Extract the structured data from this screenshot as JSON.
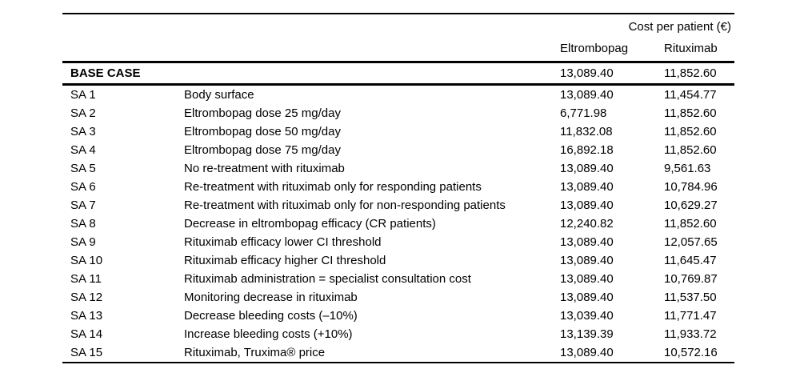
{
  "table": {
    "spanner": "Cost per patient (€)",
    "columns": {
      "eltrombopag": "Eltrombopag",
      "rituximab": "Rituximab"
    },
    "base_case": {
      "id": "BASE CASE",
      "label": "",
      "eltrombopag": "13,089.40",
      "rituximab": "11,852.60"
    },
    "rows": [
      {
        "id": "SA 1",
        "label": "Body surface",
        "eltrombopag": "13,089.40",
        "rituximab": "11,454.77"
      },
      {
        "id": "SA 2",
        "label": "Eltrombopag dose 25 mg/day",
        "eltrombopag": "6,771.98",
        "rituximab": "11,852.60"
      },
      {
        "id": "SA 3",
        "label": "Eltrombopag dose 50 mg/day",
        "eltrombopag": "11,832.08",
        "rituximab": "11,852.60"
      },
      {
        "id": "SA 4",
        "label": "Eltrombopag dose 75 mg/day",
        "eltrombopag": "16,892.18",
        "rituximab": "11,852.60"
      },
      {
        "id": "SA 5",
        "label": "No re-treatment with rituximab",
        "eltrombopag": "13,089.40",
        "rituximab": "9,561.63"
      },
      {
        "id": "SA 6",
        "label": "Re-treatment with rituximab only for responding patients",
        "eltrombopag": "13,089.40",
        "rituximab": "10,784.96"
      },
      {
        "id": "SA 7",
        "label": "Re-treatment with rituximab only for non-responding patients",
        "eltrombopag": "13,089.40",
        "rituximab": "10,629.27"
      },
      {
        "id": "SA 8",
        "label": "Decrease in eltrombopag efficacy (CR patients)",
        "eltrombopag": "12,240.82",
        "rituximab": "11,852.60"
      },
      {
        "id": "SA 9",
        "label": "Rituximab efficacy lower CI threshold",
        "eltrombopag": "13,089.40",
        "rituximab": "12,057.65"
      },
      {
        "id": "SA 10",
        "label": "Rituximab efficacy higher CI threshold",
        "eltrombopag": "13,089.40",
        "rituximab": "11,645.47"
      },
      {
        "id": "SA 11",
        "label": "Rituximab administration = specialist consultation cost",
        "eltrombopag": "13,089.40",
        "rituximab": "10,769.87"
      },
      {
        "id": "SA 12",
        "label": "Monitoring decrease in rituximab",
        "eltrombopag": "13,089.40",
        "rituximab": "11,537.50"
      },
      {
        "id": "SA 13",
        "label": "Decrease bleeding costs (–10%)",
        "eltrombopag": "13,039.40",
        "rituximab": "11,771.47"
      },
      {
        "id": "SA 14",
        "label": "Increase bleeding costs (+10%)",
        "eltrombopag": "13,139.39",
        "rituximab": "11,933.72"
      },
      {
        "id": "SA 15",
        "label": "Rituximab, Truxima® price",
        "eltrombopag": "13,089.40",
        "rituximab": "10,572.16"
      }
    ]
  }
}
